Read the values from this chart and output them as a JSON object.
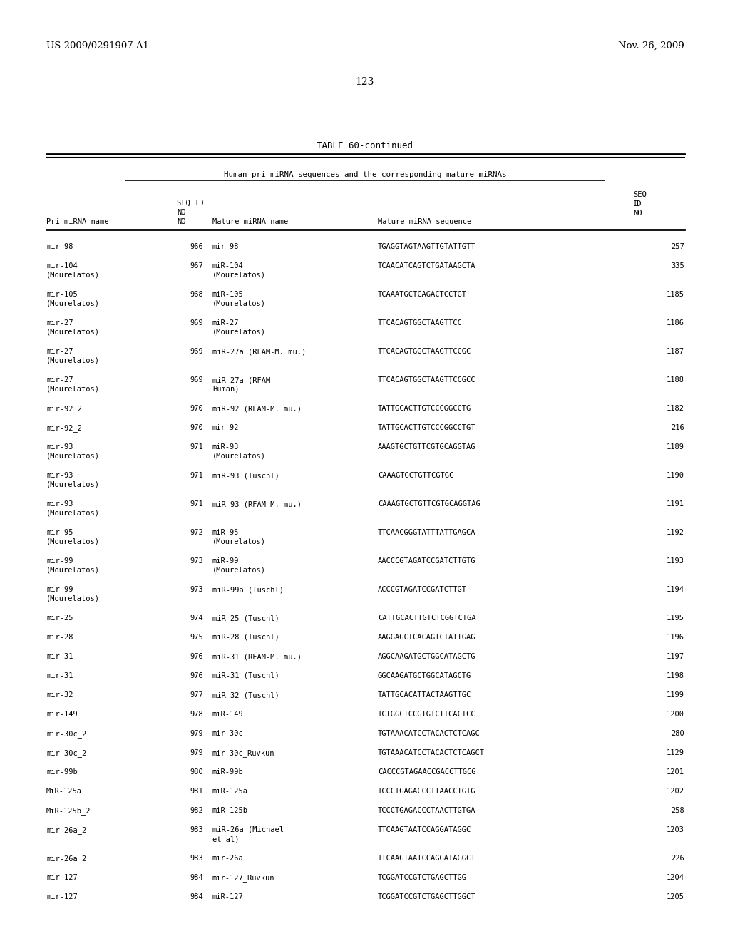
{
  "header_left": "US 2009/0291907 A1",
  "header_right": "Nov. 26, 2009",
  "page_number": "123",
  "table_title": "TABLE 60-continued",
  "subtitle": "Human pri-miRNA sequences and the corresponding mature miRNAs",
  "rows": [
    [
      "mir-98",
      "966",
      "mir-98",
      "TGAGGTAGTAAGTTGTATTGTT",
      "257"
    ],
    [
      "mir-104\n(Mourelatos)",
      "967",
      "miR-104\n(Mourelatos)",
      "TCAACATCAGTCTGATAAGCTA",
      "335"
    ],
    [
      "mir-105\n(Mourelatos)",
      "968",
      "miR-105\n(Mourelatos)",
      "TCAAATGCTCAGACTCCTGT",
      "1185"
    ],
    [
      "mir-27\n(Mourelatos)",
      "969",
      "miR-27\n(Mourelatos)",
      "TTCACAGTGGCTAAGTTCC",
      "1186"
    ],
    [
      "mir-27\n(Mourelatos)",
      "969",
      "miR-27a (RFAM-M. mu.)",
      "TTCACAGTGGCTAAGTTCCGC",
      "1187"
    ],
    [
      "mir-27\n(Mourelatos)",
      "969",
      "miR-27a (RFAM-\nHuman)",
      "TTCACAGTGGCTAAGTTCCGCC",
      "1188"
    ],
    [
      "mir-92_2",
      "970",
      "miR-92 (RFAM-M. mu.)",
      "TATTGCACTTGTCCCGGCCTG",
      "1182"
    ],
    [
      "mir-92_2",
      "970",
      "mir-92",
      "TATTGCACTTGTCCCGGCCTGT",
      "216"
    ],
    [
      "mir-93\n(Mourelatos)",
      "971",
      "miR-93\n(Mourelatos)",
      "AAAGTGCTGTTCGTGCAGGTAG",
      "1189"
    ],
    [
      "mir-93\n(Mourelatos)",
      "971",
      "miR-93 (Tuschl)",
      "CAAAGTGCTGTTCGTGC",
      "1190"
    ],
    [
      "mir-93\n(Mourelatos)",
      "971",
      "miR-93 (RFAM-M. mu.)",
      "CAAAGTGCTGTTCGTGCAGGTAG",
      "1191"
    ],
    [
      "mir-95\n(Mourelatos)",
      "972",
      "miR-95\n(Mourelatos)",
      "TTCAACGGGTATTTATTGAGCA",
      "1192"
    ],
    [
      "mir-99\n(Mourelatos)",
      "973",
      "miR-99\n(Mourelatos)",
      "AACCCGTAGATCCGATCTTGTG",
      "1193"
    ],
    [
      "mir-99\n(Mourelatos)",
      "973",
      "miR-99a (Tuschl)",
      "ACCCGTAGATCCGATCTTGT",
      "1194"
    ],
    [
      "mir-25",
      "974",
      "miR-25 (Tuschl)",
      "CATTGCACTTGTCTCGGTCTGA",
      "1195"
    ],
    [
      "mir-28",
      "975",
      "miR-28 (Tuschl)",
      "AAGGAGCTCACAGTCTATTGAG",
      "1196"
    ],
    [
      "mir-31",
      "976",
      "miR-31 (RFAM-M. mu.)",
      "AGGCAAGATGCTGGCATAGCTG",
      "1197"
    ],
    [
      "mir-31",
      "976",
      "miR-31 (Tuschl)",
      "GGCAAGATGCTGGCATAGCTG",
      "1198"
    ],
    [
      "mir-32",
      "977",
      "miR-32 (Tuschl)",
      "TATTGCACATTACTAAGTTGC",
      "1199"
    ],
    [
      "mir-149",
      "978",
      "miR-149",
      "TCTGGCTCCGTGTCTTCACTCC",
      "1200"
    ],
    [
      "mir-30c_2",
      "979",
      "mir-30c",
      "TGTAAACATCCTACACTCTCAGC",
      "280"
    ],
    [
      "mir-30c_2",
      "979",
      "mir-30c_Ruvkun",
      "TGTAAACATCCTACACTCTCAGCT",
      "1129"
    ],
    [
      "mir-99b",
      "980",
      "miR-99b",
      "CACCCGTAGAACCGACCTTGCG",
      "1201"
    ],
    [
      "MiR-125a",
      "981",
      "miR-125a",
      "TCCCTGAGACCCTTAACCTGTG",
      "1202"
    ],
    [
      "MiR-125b_2",
      "982",
      "miR-125b",
      "TCCCTGAGACCCTAACTTGTGA",
      "258"
    ],
    [
      "mir-26a_2",
      "983",
      "miR-26a (Michael\net al)",
      "TTCAAGTAATCCAGGATAGGC",
      "1203"
    ],
    [
      "mir-26a_2",
      "983",
      "mir-26a",
      "TTCAAGTAATCCAGGATAGGCT",
      "226"
    ],
    [
      "mir-127",
      "984",
      "mir-127_Ruvkun",
      "TCGGATCCGTCTGAGCTTGG",
      "1204"
    ],
    [
      "mir-127",
      "984",
      "miR-127",
      "TCGGATCCGTCTGAGCTTGGCT",
      "1205"
    ]
  ],
  "background_color": "#ffffff",
  "text_color": "#000000"
}
